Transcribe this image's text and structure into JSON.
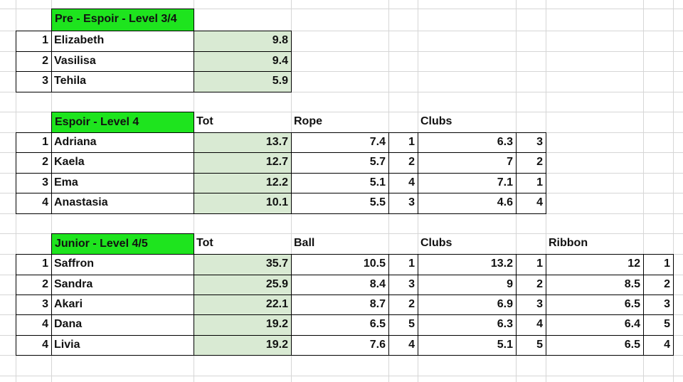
{
  "sections": [
    {
      "title": "Pre - Espoir - Level 3/4",
      "headers": [],
      "rows": [
        {
          "rank": "1",
          "name": "Elizabeth",
          "cols": [
            "9.8"
          ]
        },
        {
          "rank": "2",
          "name": "Vasilisa",
          "cols": [
            "9.4"
          ]
        },
        {
          "rank": "3",
          "name": "Tehila",
          "cols": [
            "5.9"
          ]
        }
      ]
    },
    {
      "title": "Espoir - Level 4",
      "headers": [
        "Tot",
        "Rope",
        "Clubs"
      ],
      "rows": [
        {
          "rank": "1",
          "name": "Adriana",
          "cols": [
            "13.7",
            "7.4",
            "1",
            "6.3",
            "3"
          ]
        },
        {
          "rank": "2",
          "name": "Kaela",
          "cols": [
            "12.7",
            "5.7",
            "2",
            "7",
            "2"
          ]
        },
        {
          "rank": "3",
          "name": "Ema",
          "cols": [
            "12.2",
            "5.1",
            "4",
            "7.1",
            "1"
          ]
        },
        {
          "rank": "4",
          "name": "Anastasia",
          "cols": [
            "10.1",
            "5.5",
            "3",
            "4.6",
            "4"
          ]
        }
      ]
    },
    {
      "title": "Junior - Level 4/5",
      "headers": [
        "Tot",
        "Ball",
        "Clubs",
        "Ribbon"
      ],
      "rows": [
        {
          "rank": "1",
          "name": "Saffron",
          "cols": [
            "35.7",
            "10.5",
            "1",
            "13.2",
            "1",
            "12",
            "1"
          ]
        },
        {
          "rank": "2",
          "name": "Sandra",
          "cols": [
            "25.9",
            "8.4",
            "3",
            "9",
            "2",
            "8.5",
            "2"
          ]
        },
        {
          "rank": "3",
          "name": "Akari",
          "cols": [
            "22.1",
            "8.7",
            "2",
            "6.9",
            "3",
            "6.5",
            "3"
          ]
        },
        {
          "rank": "4",
          "name": "Dana",
          "cols": [
            "19.2",
            "6.5",
            "5",
            "6.3",
            "4",
            "6.4",
            "5"
          ]
        },
        {
          "rank": "4",
          "name": "Livia",
          "cols": [
            "19.2",
            "7.6",
            "4",
            "5.1",
            "5",
            "6.5",
            "4"
          ]
        }
      ]
    }
  ],
  "colors": {
    "header_green": "#1ee41e",
    "score_fill": "#d9ead3",
    "gridline": "#d6d6d6",
    "border": "#000000"
  }
}
